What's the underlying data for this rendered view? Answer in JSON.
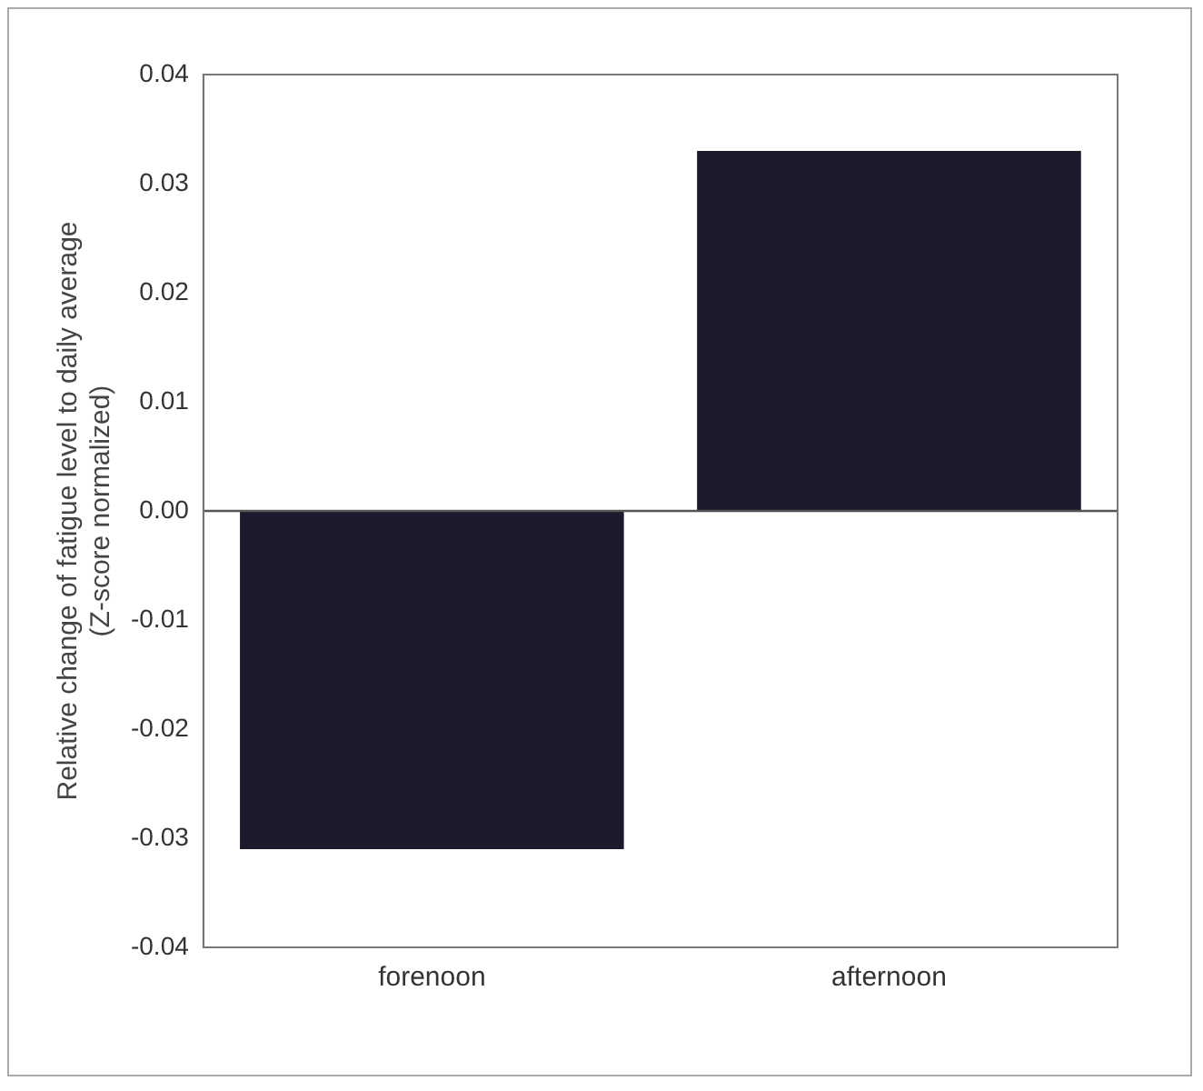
{
  "chart_data": {
    "type": "bar",
    "ylabel": "Relative change of fatigue level to daily average\n(Z-score normalized)",
    "categories": [
      "forenoon",
      "afternoon"
    ],
    "values": [
      -0.031,
      0.033
    ],
    "color": "#1c1a2c",
    "ylim": [
      -0.04,
      0.04
    ],
    "yticks": [
      {
        "value": -0.04,
        "label": "-0.04"
      },
      {
        "value": -0.03,
        "label": "-0.03"
      },
      {
        "value": -0.02,
        "label": "-0.02"
      },
      {
        "value": -0.01,
        "label": "-0.01"
      },
      {
        "value": 0,
        "label": "0.00"
      },
      {
        "value": 0.01,
        "label": "0.01"
      },
      {
        "value": 0.02,
        "label": "0.02"
      },
      {
        "value": 0.03,
        "label": "0.03"
      },
      {
        "value": 0.04,
        "label": "0.04"
      }
    ],
    "ref_lines": [
      {
        "axis": "y",
        "value": 0,
        "color": "#555555"
      }
    ],
    "grid": false,
    "legend": false
  }
}
